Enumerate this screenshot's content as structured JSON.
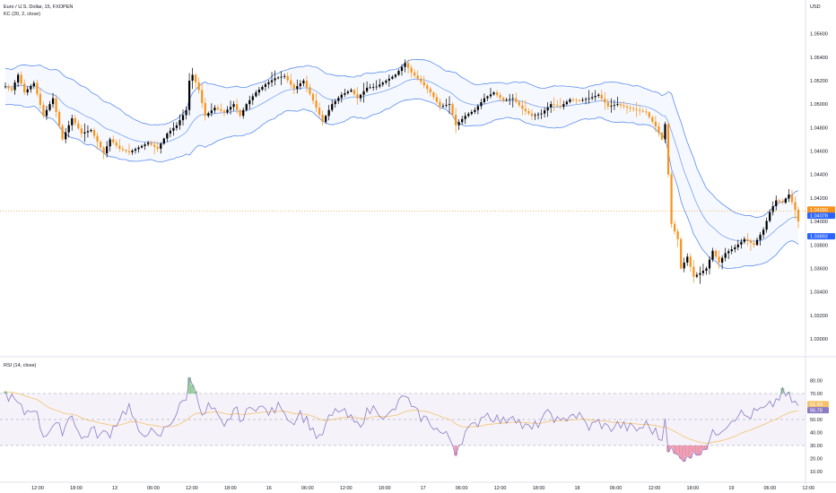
{
  "header": {
    "symbol_title": "Euro / U.S. Dollar, 15, FXOPEN",
    "indicator_label": "KC (20, 2, close)",
    "currency": "USD"
  },
  "rsi_panel": {
    "label": "RSI (14, close)"
  },
  "colors": {
    "up_candle": "#000000",
    "down_candle": "#f7931a",
    "keltner": "#5b8def",
    "rsi_line": "#8e7cc3",
    "rsi_ma": "#f5c26b",
    "rsi_band": "#ede7f6",
    "oversold_fill": "#e0537a",
    "overbought_fill": "#4caf50",
    "price_tag": "#f7931a",
    "kc_tag": "#2962ff"
  },
  "chart_data": [
    {
      "type": "candlestick",
      "title": "Euro / U.S. Dollar, 15, FXOPEN",
      "ylabel": "USD",
      "ylim": [
        1.03,
        1.0575
      ],
      "yticks": [
        "1.05600",
        "1.05400",
        "1.05200",
        "1.05000",
        "1.04800",
        "1.04600",
        "1.04400",
        "1.04200",
        "1.04000",
        "1.03800",
        "1.03600",
        "1.03400",
        "1.03200",
        "1.03000"
      ],
      "xticks": [
        "12:00",
        "18:00",
        "13",
        "06:00",
        "12:00",
        "18:00",
        "16",
        "06:00",
        "12:00",
        "18:00",
        "17",
        "06:00",
        "12:00",
        "18:00",
        "18",
        "06:00",
        "12:00",
        "18:00",
        "19",
        "06:00",
        "12:00"
      ],
      "price_path": [
        [
          0,
          1.0515
        ],
        [
          2,
          1.0512
        ],
        [
          4,
          1.0525
        ],
        [
          6,
          1.051
        ],
        [
          9,
          1.0518
        ],
        [
          12,
          1.049
        ],
        [
          15,
          1.0505
        ],
        [
          18,
          1.047
        ],
        [
          21,
          1.0488
        ],
        [
          24,
          1.0475
        ],
        [
          27,
          1.0478
        ],
        [
          31,
          1.0458
        ],
        [
          33,
          1.047
        ],
        [
          36,
          1.0462
        ],
        [
          39,
          1.0459
        ],
        [
          42,
          1.0463
        ],
        [
          45,
          1.0467
        ],
        [
          48,
          1.0462
        ],
        [
          51,
          1.0475
        ],
        [
          54,
          1.0482
        ],
        [
          57,
          1.0495
        ],
        [
          58,
          1.052
        ],
        [
          59,
          1.0525
        ],
        [
          61,
          1.0512
        ],
        [
          63,
          1.049
        ],
        [
          66,
          1.0497
        ],
        [
          69,
          1.0493
        ],
        [
          72,
          1.05
        ],
        [
          74,
          1.049
        ],
        [
          76,
          1.05
        ],
        [
          79,
          1.051
        ],
        [
          82,
          1.0517
        ],
        [
          85,
          1.0522
        ],
        [
          88,
          1.0524
        ],
        [
          91,
          1.0513
        ],
        [
          94,
          1.052
        ],
        [
          97,
          1.0503
        ],
        [
          100,
          1.0485
        ],
        [
          103,
          1.05
        ],
        [
          106,
          1.0508
        ],
        [
          109,
          1.0512
        ],
        [
          111,
          1.0505
        ],
        [
          114,
          1.0514
        ],
        [
          117,
          1.0515
        ],
        [
          120,
          1.052
        ],
        [
          123,
          1.0525
        ],
        [
          126,
          1.0535
        ],
        [
          128,
          1.0527
        ],
        [
          131,
          1.0519
        ],
        [
          134,
          1.051
        ],
        [
          137,
          1.0498
        ],
        [
          140,
          1.05
        ],
        [
          142,
          1.0482
        ],
        [
          145,
          1.049
        ],
        [
          148,
          1.0495
        ],
        [
          151,
          1.0505
        ],
        [
          154,
          1.051
        ],
        [
          157,
          1.0503
        ],
        [
          160,
          1.0505
        ],
        [
          163,
          1.0496
        ],
        [
          166,
          1.049
        ],
        [
          169,
          1.0492
        ],
        [
          172,
          1.05
        ],
        [
          175,
          1.0498
        ],
        [
          178,
          1.0504
        ],
        [
          181,
          1.0503
        ],
        [
          184,
          1.0505
        ],
        [
          187,
          1.0508
        ],
        [
          190,
          1.0498
        ],
        [
          193,
          1.05
        ],
        [
          196,
          1.0497
        ],
        [
          199,
          1.0495
        ],
        [
          202,
          1.0493
        ],
        [
          205,
          1.0481
        ],
        [
          207,
          1.047
        ],
        [
          208,
          1.0483
        ],
        [
          209,
          1.044
        ],
        [
          210,
          1.0398
        ],
        [
          212,
          1.0385
        ],
        [
          213,
          1.036
        ],
        [
          215,
          1.037
        ],
        [
          217,
          1.0353
        ],
        [
          219,
          1.0356
        ],
        [
          221,
          1.036
        ],
        [
          223,
          1.0375
        ],
        [
          225,
          1.0365
        ],
        [
          227,
          1.0373
        ],
        [
          230,
          1.0378
        ],
        [
          233,
          1.0385
        ],
        [
          236,
          1.038
        ],
        [
          239,
          1.0393
        ],
        [
          241,
          1.0408
        ],
        [
          243,
          1.0418
        ],
        [
          245,
          1.0416
        ],
        [
          247,
          1.0423
        ],
        [
          249,
          1.041
        ],
        [
          250,
          1.04
        ]
      ],
      "keltner": {
        "period": 20,
        "multiplier": 2,
        "source": "close"
      },
      "current_price_tag": "1.04090",
      "current_price_sub": "01:22",
      "kc_upper_tag": "1.04078",
      "kc_lower_tag": "1.03892"
    },
    {
      "type": "line",
      "title": "RSI (14, close)",
      "ylim": [
        10,
        90
      ],
      "yticks": [
        "80.00",
        "70.00",
        "60.00",
        "50.00",
        "40.00",
        "30.00",
        "20.00",
        "10.00"
      ],
      "bands": {
        "upper": 70,
        "middle": 50,
        "lower": 30
      },
      "rsi_path": [
        [
          0,
          70
        ],
        [
          3,
          64
        ],
        [
          6,
          55
        ],
        [
          9,
          60
        ],
        [
          12,
          38
        ],
        [
          15,
          45
        ],
        [
          18,
          42
        ],
        [
          21,
          55
        ],
        [
          24,
          34
        ],
        [
          27,
          42
        ],
        [
          30,
          38
        ],
        [
          33,
          40
        ],
        [
          36,
          52
        ],
        [
          39,
          60
        ],
        [
          42,
          38
        ],
        [
          45,
          42
        ],
        [
          48,
          35
        ],
        [
          51,
          45
        ],
        [
          54,
          55
        ],
        [
          57,
          68
        ],
        [
          58,
          80
        ],
        [
          60,
          76
        ],
        [
          62,
          50
        ],
        [
          64,
          60
        ],
        [
          66,
          55
        ],
        [
          69,
          42
        ],
        [
          72,
          58
        ],
        [
          75,
          50
        ],
        [
          78,
          62
        ],
        [
          81,
          58
        ],
        [
          84,
          55
        ],
        [
          87,
          62
        ],
        [
          90,
          48
        ],
        [
          93,
          55
        ],
        [
          96,
          46
        ],
        [
          99,
          34
        ],
        [
          102,
          50
        ],
        [
          105,
          58
        ],
        [
          108,
          52
        ],
        [
          111,
          45
        ],
        [
          114,
          55
        ],
        [
          117,
          60
        ],
        [
          120,
          50
        ],
        [
          124,
          62
        ],
        [
          126,
          70
        ],
        [
          128,
          58
        ],
        [
          131,
          52
        ],
        [
          134,
          48
        ],
        [
          137,
          40
        ],
        [
          140,
          36
        ],
        [
          142,
          26
        ],
        [
          145,
          40
        ],
        [
          148,
          45
        ],
        [
          151,
          55
        ],
        [
          154,
          52
        ],
        [
          157,
          48
        ],
        [
          160,
          55
        ],
        [
          163,
          45
        ],
        [
          166,
          42
        ],
        [
          169,
          50
        ],
        [
          172,
          55
        ],
        [
          175,
          46
        ],
        [
          178,
          55
        ],
        [
          181,
          52
        ],
        [
          184,
          44
        ],
        [
          187,
          48
        ],
        [
          190,
          43
        ],
        [
          193,
          46
        ],
        [
          196,
          44
        ],
        [
          199,
          42
        ],
        [
          202,
          46
        ],
        [
          205,
          40
        ],
        [
          207,
          34
        ],
        [
          208,
          55
        ],
        [
          209,
          28
        ],
        [
          211,
          23
        ],
        [
          213,
          19
        ],
        [
          215,
          24
        ],
        [
          217,
          22
        ],
        [
          219,
          27
        ],
        [
          221,
          30
        ],
        [
          223,
          38
        ],
        [
          225,
          42
        ],
        [
          228,
          48
        ],
        [
          231,
          55
        ],
        [
          234,
          52
        ],
        [
          237,
          56
        ],
        [
          240,
          58
        ],
        [
          242,
          62
        ],
        [
          245,
          70
        ],
        [
          247,
          67
        ],
        [
          250,
          60
        ]
      ],
      "current_value_tag": "61.49",
      "ma_value_tag": "56.78"
    }
  ]
}
